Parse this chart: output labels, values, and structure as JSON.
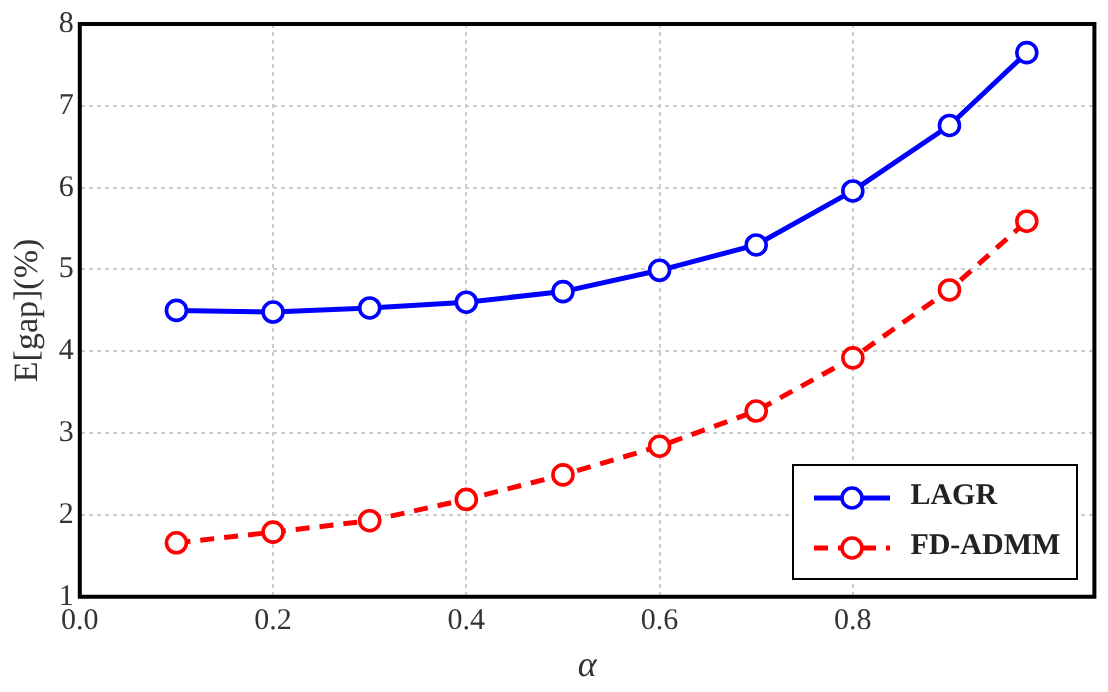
{
  "chart_data": {
    "type": "line",
    "xlabel": "α",
    "ylabel": "E[gap](%)",
    "x": [
      0.1,
      0.2,
      0.3,
      0.4,
      0.5,
      0.6,
      0.7,
      0.8,
      0.9,
      0.98
    ],
    "series": [
      {
        "name": "LAGR",
        "color": "#0000ff",
        "line_style": "solid",
        "values": [
          4.5,
          4.48,
          4.53,
          4.6,
          4.73,
          4.99,
          5.3,
          5.96,
          6.76,
          7.65
        ]
      },
      {
        "name": "FD-ADMM",
        "color": "#ff0000",
        "line_style": "dashed",
        "values": [
          1.66,
          1.79,
          1.93,
          2.19,
          2.49,
          2.84,
          3.27,
          3.92,
          4.75,
          5.59
        ]
      }
    ],
    "xlim": [
      0,
      1.05
    ],
    "xticks": [
      {
        "value": 0,
        "label": "0.0"
      },
      {
        "value": 0.2,
        "label": "0.2"
      },
      {
        "value": 0.4,
        "label": "0.4"
      },
      {
        "value": 0.6,
        "label": "0.6"
      },
      {
        "value": 0.8,
        "label": "0.8"
      }
    ],
    "ylim": [
      1,
      8
    ],
    "yticks": [
      1,
      2,
      3,
      4,
      5,
      6,
      7,
      8
    ],
    "grid": true,
    "legend": "bottom right",
    "marker": "circle"
  }
}
